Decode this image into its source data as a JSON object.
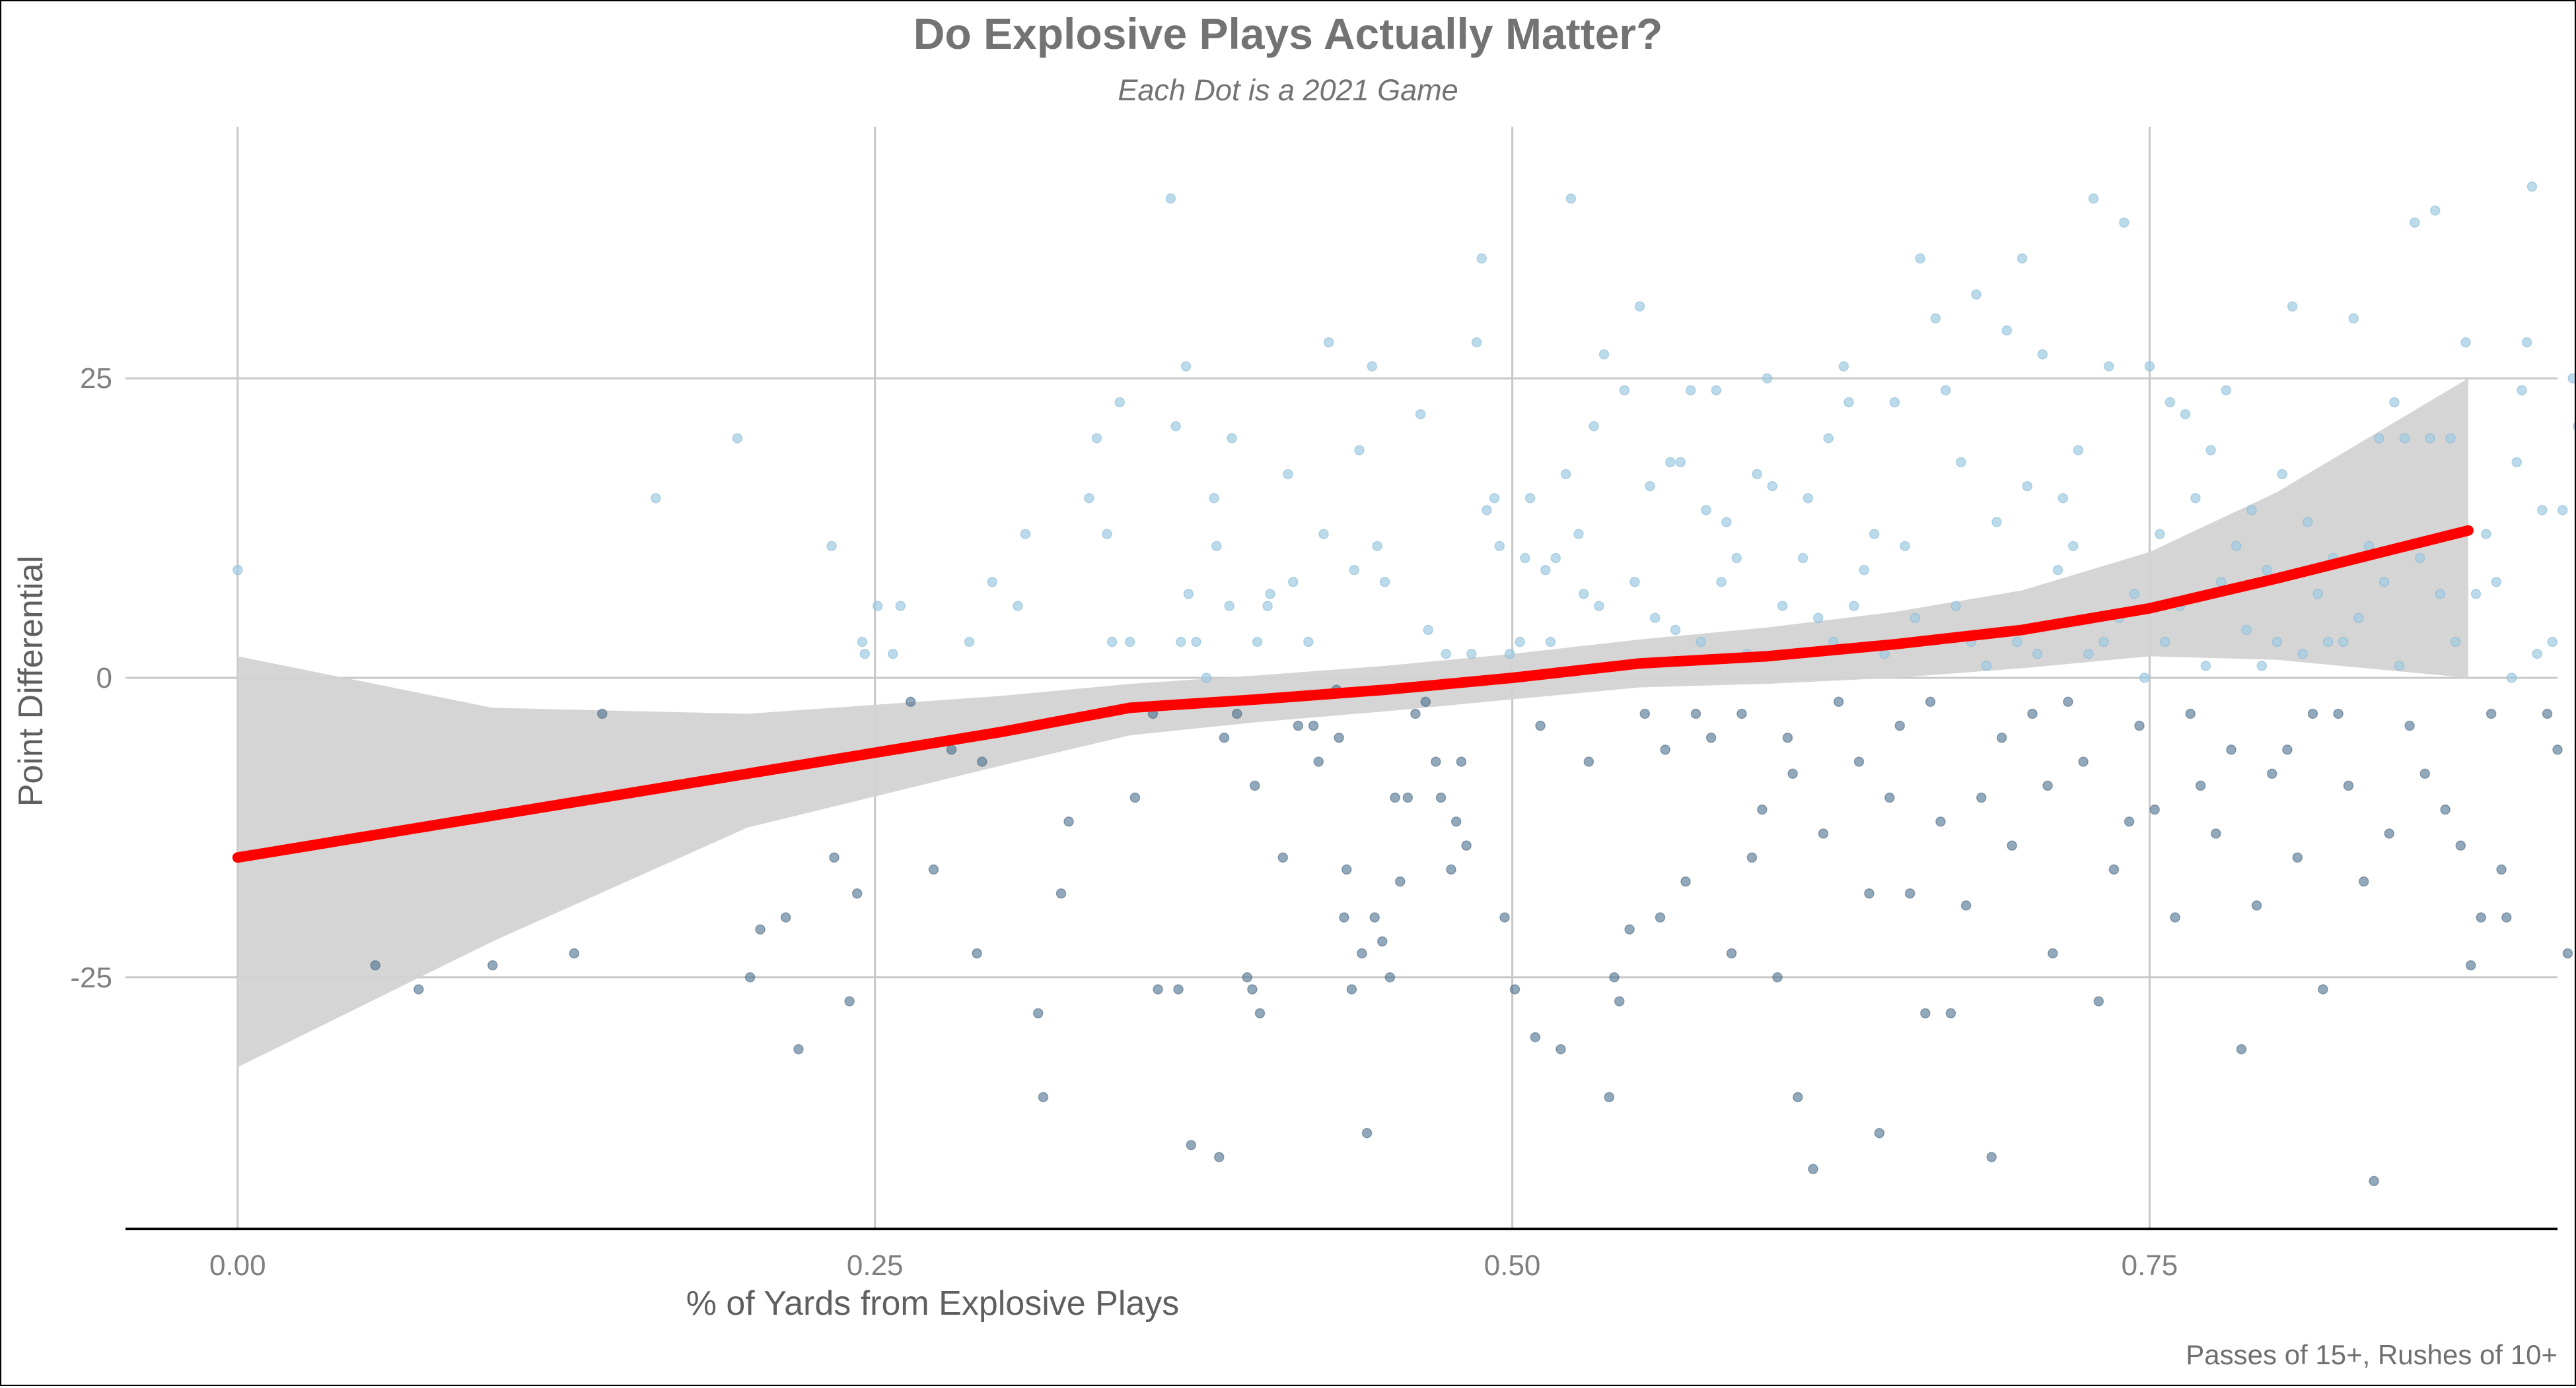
{
  "chart_data": {
    "type": "scatter",
    "title": "Do Explosive Plays Actually Matter?",
    "subtitle": "Each Dot is a 2021 Game",
    "xlabel": "% of Yards from Explosive Plays",
    "ylabel": "Point Differential",
    "caption": "Passes of 15+, Rushes of 10+",
    "xlim": [
      -0.044,
      0.91
    ],
    "ylim": [
      -46,
      46
    ],
    "x_ticks": [
      0.0,
      0.25,
      0.5,
      0.75
    ],
    "x_tick_labels": [
      "0.00",
      "0.25",
      "0.50",
      "0.75"
    ],
    "y_ticks": [
      -25,
      0,
      25
    ],
    "y_tick_labels": [
      "-25",
      "0",
      "25"
    ],
    "grid": true,
    "legend": "none",
    "colors": {
      "point_light": "#9ecae1",
      "point_dark": "#4a6f8f",
      "trend_line": "#ff0000",
      "confidence_band": "#d3d3d3",
      "grid": "#c8c8c8",
      "title": "#737373",
      "axis_text": "#7f7f7f"
    },
    "trend_line": {
      "x": [
        0.0,
        0.1,
        0.2,
        0.3,
        0.35,
        0.4,
        0.45,
        0.5,
        0.55,
        0.6,
        0.65,
        0.7,
        0.75,
        0.8,
        0.875
      ],
      "y": [
        -15,
        -11.5,
        -8,
        -4.5,
        -2.5,
        -1.8,
        -1,
        0,
        1.2,
        1.8,
        2.8,
        4,
        5.8,
        8.3,
        12.3
      ]
    },
    "confidence_band": {
      "x": [
        0.0,
        0.1,
        0.2,
        0.3,
        0.35,
        0.4,
        0.45,
        0.5,
        0.55,
        0.6,
        0.65,
        0.7,
        0.75,
        0.8,
        0.875
      ],
      "upper": [
        1.8,
        -2.5,
        -3.0,
        -1.5,
        -0.5,
        0.2,
        1.0,
        2.0,
        3.2,
        4.2,
        5.5,
        7.3,
        10.5,
        15.5,
        25.0
      ],
      "lower": [
        -32.5,
        -22.0,
        -12.5,
        -7.3,
        -4.8,
        -3.7,
        -2.8,
        -1.8,
        -0.8,
        -0.5,
        0.0,
        0.8,
        1.8,
        1.5,
        0.0
      ]
    },
    "points": [
      [
        0.0,
        9
      ],
      [
        0.054,
        -24
      ],
      [
        0.071,
        -26
      ],
      [
        0.1,
        -24
      ],
      [
        0.132,
        -23
      ],
      [
        0.143,
        -3
      ],
      [
        0.164,
        15
      ],
      [
        0.196,
        20
      ],
      [
        0.201,
        -25
      ],
      [
        0.205,
        -21
      ],
      [
        0.215,
        -20
      ],
      [
        0.22,
        -31
      ],
      [
        0.233,
        11
      ],
      [
        0.234,
        -15
      ],
      [
        0.24,
        -27
      ],
      [
        0.243,
        -18
      ],
      [
        0.245,
        3
      ],
      [
        0.246,
        2
      ],
      [
        0.251,
        6
      ],
      [
        0.257,
        2
      ],
      [
        0.26,
        6
      ],
      [
        0.264,
        -2
      ],
      [
        0.273,
        -16
      ],
      [
        0.28,
        -6
      ],
      [
        0.287,
        3
      ],
      [
        0.29,
        -23
      ],
      [
        0.292,
        -7
      ],
      [
        0.296,
        8
      ],
      [
        0.306,
        6
      ],
      [
        0.309,
        12
      ],
      [
        0.314,
        -28
      ],
      [
        0.316,
        -35
      ],
      [
        0.323,
        -18
      ],
      [
        0.326,
        -12
      ],
      [
        0.334,
        15
      ],
      [
        0.337,
        20
      ],
      [
        0.341,
        12
      ],
      [
        0.343,
        3
      ],
      [
        0.346,
        23
      ],
      [
        0.35,
        3
      ],
      [
        0.352,
        -10
      ],
      [
        0.359,
        -3
      ],
      [
        0.361,
        -26
      ],
      [
        0.366,
        40
      ],
      [
        0.368,
        21
      ],
      [
        0.369,
        -26
      ],
      [
        0.37,
        3
      ],
      [
        0.372,
        26
      ],
      [
        0.373,
        7
      ],
      [
        0.374,
        -39
      ],
      [
        0.376,
        3
      ],
      [
        0.38,
        0
      ],
      [
        0.383,
        15
      ],
      [
        0.384,
        11
      ],
      [
        0.385,
        -40
      ],
      [
        0.387,
        -5
      ],
      [
        0.389,
        6
      ],
      [
        0.39,
        20
      ],
      [
        0.392,
        -3
      ],
      [
        0.396,
        -25
      ],
      [
        0.398,
        -26
      ],
      [
        0.399,
        -9
      ],
      [
        0.4,
        3
      ],
      [
        0.401,
        -28
      ],
      [
        0.404,
        6
      ],
      [
        0.405,
        7
      ],
      [
        0.41,
        -15
      ],
      [
        0.412,
        17
      ],
      [
        0.414,
        8
      ],
      [
        0.416,
        -4
      ],
      [
        0.42,
        3
      ],
      [
        0.422,
        -4
      ],
      [
        0.424,
        -7
      ],
      [
        0.426,
        12
      ],
      [
        0.428,
        28
      ],
      [
        0.431,
        -1
      ],
      [
        0.432,
        -5
      ],
      [
        0.434,
        -20
      ],
      [
        0.435,
        -16
      ],
      [
        0.437,
        -26
      ],
      [
        0.438,
        9
      ],
      [
        0.44,
        19
      ],
      [
        0.441,
        -23
      ],
      [
        0.443,
        -38
      ],
      [
        0.445,
        26
      ],
      [
        0.446,
        -20
      ],
      [
        0.447,
        11
      ],
      [
        0.449,
        -22
      ],
      [
        0.45,
        8
      ],
      [
        0.452,
        -25
      ],
      [
        0.454,
        -10
      ],
      [
        0.456,
        -17
      ],
      [
        0.459,
        -10
      ],
      [
        0.462,
        -3
      ],
      [
        0.464,
        22
      ],
      [
        0.466,
        -2
      ],
      [
        0.467,
        4
      ],
      [
        0.47,
        -7
      ],
      [
        0.472,
        -10
      ],
      [
        0.474,
        2
      ],
      [
        0.476,
        -16
      ],
      [
        0.478,
        -12
      ],
      [
        0.48,
        -7
      ],
      [
        0.482,
        -14
      ],
      [
        0.484,
        2
      ],
      [
        0.486,
        28
      ],
      [
        0.488,
        35
      ],
      [
        0.49,
        14
      ],
      [
        0.493,
        15
      ],
      [
        0.495,
        11
      ],
      [
        0.497,
        -20
      ],
      [
        0.499,
        2
      ],
      [
        0.501,
        -26
      ],
      [
        0.503,
        3
      ],
      [
        0.505,
        10
      ],
      [
        0.507,
        15
      ],
      [
        0.509,
        -30
      ],
      [
        0.511,
        -4
      ],
      [
        0.513,
        9
      ],
      [
        0.515,
        3
      ],
      [
        0.517,
        10
      ],
      [
        0.519,
        -31
      ],
      [
        0.521,
        17
      ],
      [
        0.523,
        40
      ],
      [
        0.526,
        12
      ],
      [
        0.528,
        7
      ],
      [
        0.53,
        -7
      ],
      [
        0.532,
        21
      ],
      [
        0.534,
        6
      ],
      [
        0.536,
        27
      ],
      [
        0.538,
        -35
      ],
      [
        0.54,
        -25
      ],
      [
        0.542,
        -27
      ],
      [
        0.544,
        24
      ],
      [
        0.546,
        -21
      ],
      [
        0.548,
        8
      ],
      [
        0.55,
        31
      ],
      [
        0.552,
        -3
      ],
      [
        0.554,
        16
      ],
      [
        0.556,
        5
      ],
      [
        0.558,
        -20
      ],
      [
        0.56,
        -6
      ],
      [
        0.562,
        18
      ],
      [
        0.564,
        4
      ],
      [
        0.566,
        18
      ],
      [
        0.568,
        -17
      ],
      [
        0.57,
        24
      ],
      [
        0.572,
        -3
      ],
      [
        0.574,
        3
      ],
      [
        0.576,
        14
      ],
      [
        0.578,
        -5
      ],
      [
        0.58,
        24
      ],
      [
        0.582,
        8
      ],
      [
        0.584,
        13
      ],
      [
        0.586,
        -23
      ],
      [
        0.588,
        10
      ],
      [
        0.59,
        -3
      ],
      [
        0.592,
        2
      ],
      [
        0.594,
        -15
      ],
      [
        0.596,
        17
      ],
      [
        0.598,
        -11
      ],
      [
        0.6,
        25
      ],
      [
        0.602,
        16
      ],
      [
        0.604,
        -25
      ],
      [
        0.606,
        6
      ],
      [
        0.608,
        -5
      ],
      [
        0.61,
        -8
      ],
      [
        0.612,
        -35
      ],
      [
        0.614,
        10
      ],
      [
        0.616,
        15
      ],
      [
        0.618,
        -41
      ],
      [
        0.62,
        5
      ],
      [
        0.622,
        -13
      ],
      [
        0.624,
        20
      ],
      [
        0.626,
        3
      ],
      [
        0.628,
        -2
      ],
      [
        0.63,
        26
      ],
      [
        0.632,
        23
      ],
      [
        0.634,
        6
      ],
      [
        0.636,
        -7
      ],
      [
        0.638,
        9
      ],
      [
        0.64,
        -18
      ],
      [
        0.642,
        12
      ],
      [
        0.644,
        -38
      ],
      [
        0.646,
        2
      ],
      [
        0.648,
        -10
      ],
      [
        0.65,
        23
      ],
      [
        0.652,
        -4
      ],
      [
        0.654,
        11
      ],
      [
        0.656,
        -18
      ],
      [
        0.658,
        5
      ],
      [
        0.66,
        35
      ],
      [
        0.662,
        -28
      ],
      [
        0.664,
        -2
      ],
      [
        0.666,
        30
      ],
      [
        0.668,
        -12
      ],
      [
        0.67,
        24
      ],
      [
        0.672,
        -28
      ],
      [
        0.674,
        6
      ],
      [
        0.676,
        18
      ],
      [
        0.678,
        -19
      ],
      [
        0.68,
        3
      ],
      [
        0.682,
        32
      ],
      [
        0.684,
        -10
      ],
      [
        0.686,
        1
      ],
      [
        0.688,
        -40
      ],
      [
        0.69,
        13
      ],
      [
        0.692,
        -5
      ],
      [
        0.694,
        29
      ],
      [
        0.696,
        -14
      ],
      [
        0.698,
        3
      ],
      [
        0.7,
        35
      ],
      [
        0.702,
        16
      ],
      [
        0.704,
        -3
      ],
      [
        0.706,
        2
      ],
      [
        0.708,
        27
      ],
      [
        0.71,
        -9
      ],
      [
        0.712,
        -23
      ],
      [
        0.714,
        9
      ],
      [
        0.716,
        15
      ],
      [
        0.718,
        -2
      ],
      [
        0.72,
        11
      ],
      [
        0.722,
        19
      ],
      [
        0.724,
        -7
      ],
      [
        0.726,
        2
      ],
      [
        0.728,
        40
      ],
      [
        0.73,
        -27
      ],
      [
        0.732,
        3
      ],
      [
        0.734,
        26
      ],
      [
        0.736,
        -16
      ],
      [
        0.738,
        5
      ],
      [
        0.74,
        38
      ],
      [
        0.742,
        -12
      ],
      [
        0.744,
        7
      ],
      [
        0.746,
        -4
      ],
      [
        0.748,
        0
      ],
      [
        0.75,
        26
      ],
      [
        0.752,
        -11
      ],
      [
        0.754,
        12
      ],
      [
        0.756,
        3
      ],
      [
        0.758,
        23
      ],
      [
        0.76,
        -20
      ],
      [
        0.762,
        6
      ],
      [
        0.764,
        22
      ],
      [
        0.766,
        -3
      ],
      [
        0.768,
        15
      ],
      [
        0.77,
        -9
      ],
      [
        0.772,
        1
      ],
      [
        0.774,
        19
      ],
      [
        0.776,
        -13
      ],
      [
        0.778,
        8
      ],
      [
        0.78,
        24
      ],
      [
        0.782,
        -6
      ],
      [
        0.784,
        11
      ],
      [
        0.786,
        -31
      ],
      [
        0.788,
        4
      ],
      [
        0.79,
        14
      ],
      [
        0.792,
        -19
      ],
      [
        0.794,
        1
      ],
      [
        0.796,
        9
      ],
      [
        0.798,
        -8
      ],
      [
        0.8,
        3
      ],
      [
        0.802,
        17
      ],
      [
        0.804,
        -6
      ],
      [
        0.806,
        31
      ],
      [
        0.808,
        -15
      ],
      [
        0.81,
        2
      ],
      [
        0.812,
        13
      ],
      [
        0.814,
        -3
      ],
      [
        0.816,
        7
      ],
      [
        0.818,
        -26
      ],
      [
        0.82,
        3
      ],
      [
        0.822,
        10
      ],
      [
        0.824,
        -3
      ],
      [
        0.826,
        3
      ],
      [
        0.828,
        -9
      ],
      [
        0.83,
        30
      ],
      [
        0.832,
        5
      ],
      [
        0.834,
        -17
      ],
      [
        0.836,
        11
      ],
      [
        0.838,
        -42
      ],
      [
        0.84,
        20
      ],
      [
        0.842,
        8
      ],
      [
        0.844,
        -13
      ],
      [
        0.846,
        23
      ],
      [
        0.848,
        1
      ],
      [
        0.85,
        20
      ],
      [
        0.852,
        -4
      ],
      [
        0.854,
        38
      ],
      [
        0.856,
        10
      ],
      [
        0.858,
        -8
      ],
      [
        0.86,
        20
      ],
      [
        0.862,
        39
      ],
      [
        0.864,
        7
      ],
      [
        0.866,
        -11
      ],
      [
        0.868,
        20
      ],
      [
        0.87,
        3
      ],
      [
        0.872,
        -14
      ],
      [
        0.874,
        28
      ],
      [
        0.876,
        -24
      ],
      [
        0.878,
        7
      ],
      [
        0.88,
        -20
      ],
      [
        0.882,
        12
      ],
      [
        0.884,
        -3
      ],
      [
        0.886,
        8
      ],
      [
        0.888,
        -16
      ],
      [
        0.89,
        -20
      ],
      [
        0.892,
        0
      ],
      [
        0.894,
        18
      ],
      [
        0.896,
        24
      ],
      [
        0.898,
        28
      ],
      [
        0.9,
        41
      ],
      [
        0.902,
        2
      ],
      [
        0.904,
        14
      ],
      [
        0.906,
        -3
      ],
      [
        0.908,
        3
      ],
      [
        0.91,
        -6
      ],
      [
        0.912,
        14
      ],
      [
        0.914,
        -23
      ],
      [
        0.916,
        25
      ],
      [
        0.918,
        21
      ]
    ]
  }
}
